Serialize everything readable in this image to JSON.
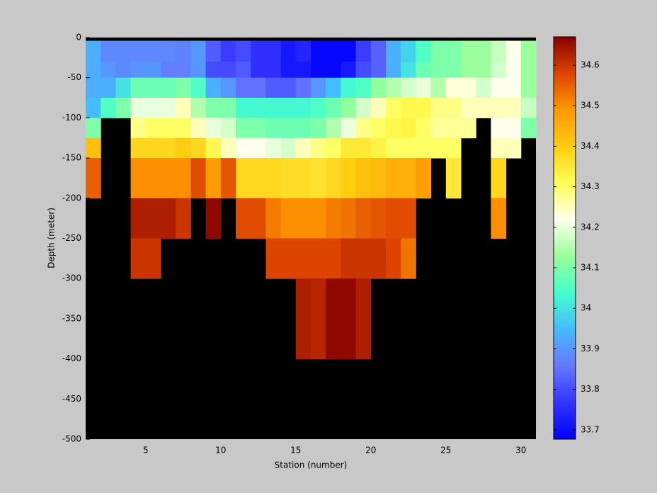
{
  "chart_data": {
    "type": "heatmap",
    "xlabel": "Station (number)",
    "ylabel": "Depth (meter)",
    "xlim": [
      1,
      31
    ],
    "ylim": [
      -500,
      0
    ],
    "xticks": [
      5,
      10,
      15,
      20,
      25,
      30
    ],
    "yticks": [
      0,
      -50,
      -100,
      -150,
      -200,
      -250,
      -300,
      -350,
      -400,
      -450,
      -500
    ],
    "xbins": [
      1,
      2,
      3,
      4,
      5,
      6,
      7,
      8,
      9,
      10,
      11,
      12,
      13,
      14,
      15,
      16,
      17,
      18,
      19,
      20,
      21,
      22,
      23,
      24,
      25,
      26,
      27,
      28,
      29,
      30,
      31
    ],
    "ybins": [
      0,
      -4,
      -30,
      -50,
      -75,
      -100,
      -125,
      -150,
      -200,
      -250,
      -300,
      -400,
      -500
    ],
    "clim": [
      33.677,
      34.67
    ],
    "cticks": [
      33.7,
      33.8,
      33.9,
      34,
      34.1,
      34.2,
      34.3,
      34.4,
      34.5,
      34.6
    ],
    "colormap": [
      "#0000ff",
      "#3333ff",
      "#6677ff",
      "#44bbff",
      "#44ffcc",
      "#99ff99",
      "#ffffee",
      "#ffff55",
      "#ffcc11",
      "#ff9900",
      "#dd4400",
      "#880000"
    ],
    "missing_color": "#000000",
    "values": [
      [
        null,
        null,
        null,
        null,
        null,
        null,
        null,
        null,
        null,
        null,
        null,
        null,
        null,
        null,
        null,
        null,
        null,
        null,
        null,
        null,
        null,
        null,
        null,
        null,
        null,
        null,
        null,
        null,
        null,
        null
      ],
      [
        33.93,
        33.88,
        33.88,
        33.88,
        33.88,
        33.88,
        33.87,
        33.9,
        33.82,
        33.78,
        33.8,
        33.76,
        33.76,
        33.72,
        33.74,
        33.69,
        33.69,
        33.69,
        33.78,
        33.83,
        33.93,
        33.98,
        34.05,
        34.1,
        34.1,
        34.13,
        34.13,
        34.17,
        34.22,
        34.13
      ],
      [
        33.93,
        33.9,
        33.88,
        33.9,
        33.9,
        33.87,
        33.87,
        33.9,
        33.8,
        33.8,
        33.82,
        33.76,
        33.76,
        33.72,
        33.72,
        33.69,
        33.69,
        33.72,
        33.8,
        33.83,
        33.93,
        34.0,
        34.08,
        34.1,
        34.1,
        34.13,
        34.13,
        34.18,
        34.22,
        34.13
      ],
      [
        33.93,
        33.93,
        34.0,
        34.08,
        34.08,
        34.08,
        34.1,
        34.05,
        33.93,
        33.9,
        33.85,
        33.85,
        33.82,
        33.82,
        33.85,
        33.9,
        33.95,
        34.03,
        34.05,
        34.12,
        34.15,
        34.18,
        34.2,
        34.15,
        34.23,
        34.23,
        34.18,
        34.22,
        34.22,
        34.13
      ],
      [
        33.95,
        34.05,
        34.1,
        34.2,
        34.2,
        34.2,
        34.25,
        34.15,
        34.1,
        34.1,
        34.03,
        34.03,
        34.03,
        34.03,
        34.03,
        34.05,
        34.08,
        34.12,
        34.18,
        34.25,
        34.3,
        34.32,
        34.32,
        34.28,
        34.28,
        34.25,
        34.25,
        34.25,
        34.25,
        34.17
      ],
      [
        34.1,
        null,
        null,
        34.28,
        34.3,
        34.3,
        34.3,
        34.25,
        34.2,
        34.18,
        34.1,
        34.1,
        34.08,
        34.08,
        34.08,
        34.1,
        34.15,
        34.2,
        34.28,
        34.3,
        34.32,
        34.33,
        34.3,
        34.27,
        34.27,
        34.27,
        null,
        34.22,
        34.22,
        34.1
      ],
      [
        34.42,
        null,
        null,
        34.38,
        34.38,
        34.38,
        34.4,
        34.38,
        34.32,
        34.25,
        34.22,
        34.22,
        34.2,
        34.18,
        34.25,
        34.28,
        34.3,
        34.35,
        34.35,
        34.33,
        34.3,
        34.3,
        34.3,
        34.3,
        34.3,
        null,
        null,
        34.25,
        34.25,
        null
      ],
      [
        34.55,
        null,
        null,
        34.5,
        34.5,
        34.5,
        34.5,
        34.57,
        34.48,
        34.56,
        34.38,
        34.38,
        34.38,
        34.37,
        34.37,
        34.36,
        34.38,
        34.4,
        34.42,
        34.43,
        34.45,
        34.45,
        34.48,
        null,
        34.35,
        null,
        null,
        34.38,
        null,
        null
      ],
      [
        null,
        null,
        null,
        34.63,
        34.63,
        34.63,
        34.6,
        null,
        34.66,
        null,
        34.57,
        34.57,
        34.52,
        34.5,
        34.5,
        34.5,
        34.52,
        34.53,
        34.55,
        34.56,
        34.57,
        34.57,
        null,
        null,
        null,
        null,
        null,
        34.5,
        null,
        null
      ],
      [
        null,
        null,
        null,
        34.6,
        34.6,
        null,
        null,
        null,
        null,
        null,
        null,
        null,
        34.58,
        34.58,
        34.58,
        34.58,
        34.58,
        34.6,
        34.6,
        34.6,
        34.58,
        34.53,
        null,
        null,
        null,
        null,
        null,
        null,
        null,
        null
      ],
      [
        null,
        null,
        null,
        null,
        null,
        null,
        null,
        null,
        null,
        null,
        null,
        null,
        null,
        null,
        34.63,
        34.62,
        34.66,
        34.66,
        34.63,
        null,
        null,
        null,
        null,
        null,
        null,
        null,
        null,
        null,
        null,
        null
      ],
      [
        null,
        null,
        null,
        null,
        null,
        null,
        null,
        null,
        null,
        null,
        null,
        null,
        null,
        null,
        null,
        null,
        null,
        null,
        null,
        null,
        null,
        null,
        null,
        null,
        null,
        null,
        null,
        null,
        null,
        null
      ]
    ]
  }
}
